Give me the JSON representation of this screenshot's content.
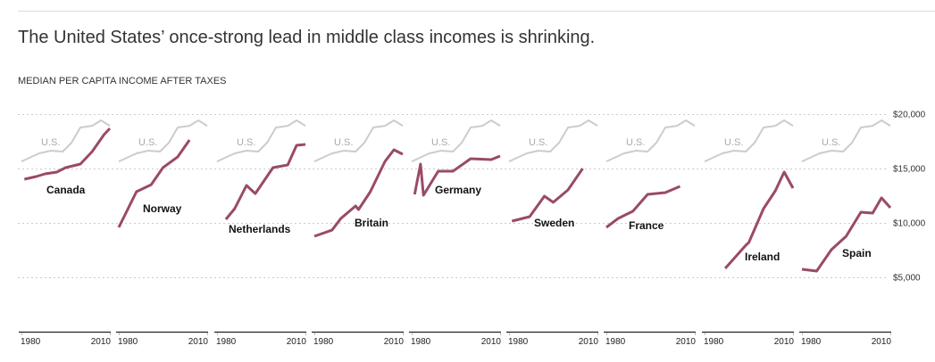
{
  "header": {
    "title": "The United States’ once-strong lead in middle class incomes is shrinking.",
    "subtitle": "MEDIAN PER CAPITA INCOME AFTER TAXES"
  },
  "colors": {
    "country_line": "#9a4a68",
    "us_line": "#cccccc",
    "us_label": "#aaaaaa",
    "gridline": "#cccccc",
    "axis": "#222222"
  },
  "chart_data": {
    "type": "line",
    "title": "The United States’ once-strong lead in middle class incomes is shrinking.",
    "subtitle": "MEDIAN PER CAPITA INCOME AFTER TAXES",
    "layout": "small multiples, one panel per country, shared y-axis on right",
    "ylabel": "",
    "ylim": [
      0,
      20000
    ],
    "yticks": [
      5000,
      10000,
      15000,
      20000
    ],
    "ytick_labels": [
      "$5,000",
      "$10,000",
      "$15,000",
      "$20,000"
    ],
    "xlim": [
      1980,
      2010
    ],
    "xtick_labels": [
      "1980",
      "2010"
    ],
    "grid": true,
    "reference_series": {
      "name": "U.S.",
      "label": "U.S.",
      "x": [
        1980,
        1986,
        1990,
        1994,
        1997,
        2000,
        2004,
        2007,
        2010
      ],
      "values": [
        15650,
        16390,
        16640,
        16560,
        17380,
        18770,
        18930,
        19430,
        18930
      ]
    },
    "series": [
      {
        "name": "Canada",
        "x": [
          1981,
          1985,
          1988,
          1992,
          1995,
          2000,
          2004,
          2008,
          2010
        ],
        "values": [
          14020,
          14260,
          14510,
          14670,
          15080,
          15410,
          16560,
          18110,
          18690
        ]
      },
      {
        "name": "Norway",
        "x": [
          1980,
          1986,
          1991,
          1995,
          2000,
          2004
        ],
        "values": [
          9590,
          12870,
          13520,
          15080,
          16070,
          17620
        ]
      },
      {
        "name": "Netherlands",
        "x": [
          1983,
          1986,
          1990,
          1993,
          1999,
          2004,
          2007,
          2010
        ],
        "values": [
          10330,
          11310,
          13440,
          12700,
          15080,
          15330,
          17130,
          17210
        ]
      },
      {
        "name": "Britain",
        "x": [
          1980,
          1986,
          1989,
          1994,
          1995,
          1999,
          2004,
          2007,
          2010
        ],
        "values": [
          8770,
          9340,
          10410,
          11560,
          11230,
          12870,
          15660,
          16720,
          16310
        ]
      },
      {
        "name": "Germany",
        "x": [
          1981,
          1983,
          1984,
          1989,
          1994,
          2000,
          2007,
          2010
        ],
        "values": [
          12620,
          15410,
          12540,
          14750,
          14750,
          15900,
          15820,
          16150
        ]
      },
      {
        "name": "Sweden",
        "x": [
          1981,
          1987,
          1992,
          1995,
          2000,
          2005
        ],
        "values": [
          10160,
          10570,
          12460,
          11890,
          13030,
          15000
        ]
      },
      {
        "name": "France",
        "x": [
          1980,
          1984,
          1989,
          1994,
          2000,
          2005
        ],
        "values": [
          9590,
          10410,
          11070,
          12620,
          12790,
          13360
        ]
      },
      {
        "name": "Ireland",
        "x": [
          1987,
          1994,
          1995,
          2000,
          2004,
          2007,
          2010
        ],
        "values": [
          5820,
          7950,
          8200,
          11310,
          12950,
          14670,
          13200
        ]
      },
      {
        "name": "Spain",
        "x": [
          1980,
          1985,
          1990,
          1995,
          2000,
          2004,
          2007,
          2010
        ],
        "values": [
          5740,
          5570,
          7540,
          8770,
          10980,
          10900,
          12300,
          11390
        ]
      }
    ]
  }
}
